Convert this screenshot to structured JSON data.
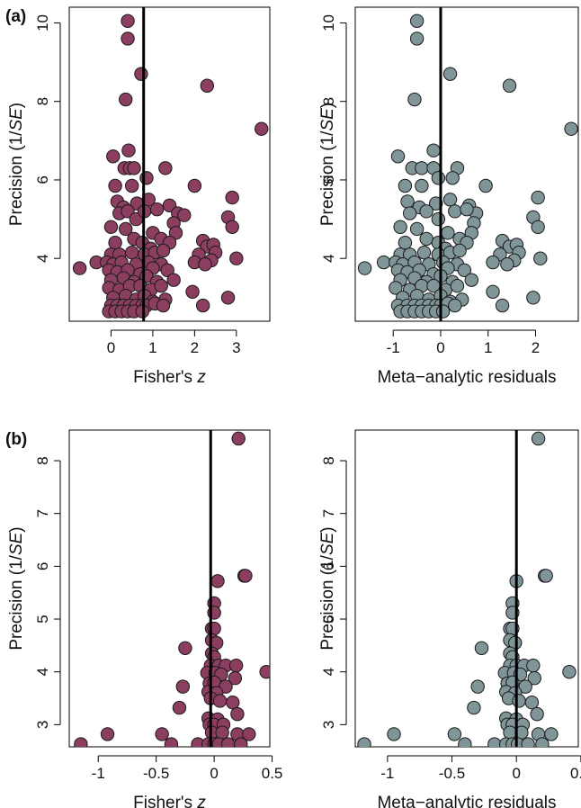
{
  "figure": {
    "row_labels": [
      "(a)",
      "(b)"
    ]
  },
  "colors": {
    "fisher_fill": "#8B3E60",
    "residual_fill": "#7F9598",
    "marker_stroke": "#1a1a1a",
    "reference_line": "#000000",
    "frame": "#000000"
  },
  "chart_data": [
    {
      "type": "scatter",
      "row_label": "(a)",
      "xlabel": "Fisher's z",
      "ylabel": "Precision (1/SE)",
      "xlim": [
        -1.0,
        3.8
      ],
      "ylim": [
        2.4,
        10.4
      ],
      "xticks": [
        0,
        1,
        2,
        3
      ],
      "yticks": [
        4,
        6,
        8,
        10
      ],
      "reference_x": 0.78,
      "color_key": "fisher_fill",
      "points": [
        [
          0.4,
          10.05
        ],
        [
          0.4,
          9.6
        ],
        [
          0.72,
          8.7
        ],
        [
          0.35,
          8.05
        ],
        [
          2.3,
          8.4
        ],
        [
          3.6,
          7.3
        ],
        [
          0.05,
          6.6
        ],
        [
          0.42,
          6.75
        ],
        [
          0.32,
          6.3
        ],
        [
          0.45,
          6.3
        ],
        [
          0.55,
          6.3
        ],
        [
          1.3,
          6.3
        ],
        [
          0.1,
          5.85
        ],
        [
          0.5,
          5.85
        ],
        [
          0.85,
          6.05
        ],
        [
          2.0,
          5.85
        ],
        [
          2.9,
          5.55
        ],
        [
          0.15,
          5.45
        ],
        [
          0.3,
          5.3
        ],
        [
          0.62,
          5.4
        ],
        [
          0.9,
          5.5
        ],
        [
          1.4,
          5.35
        ],
        [
          1.6,
          5.15
        ],
        [
          0.2,
          5.15
        ],
        [
          0.4,
          5.2
        ],
        [
          0.6,
          5.0
        ],
        [
          0.8,
          5.2
        ],
        [
          1.1,
          5.25
        ],
        [
          1.5,
          4.9
        ],
        [
          1.75,
          5.1
        ],
        [
          2.8,
          5.05
        ],
        [
          2.9,
          4.8
        ],
        [
          0.0,
          4.8
        ],
        [
          0.35,
          4.75
        ],
        [
          1.0,
          4.65
        ],
        [
          1.2,
          4.5
        ],
        [
          1.55,
          4.65
        ],
        [
          2.2,
          4.45
        ],
        [
          0.1,
          4.4
        ],
        [
          0.55,
          4.5
        ],
        [
          0.75,
          4.4
        ],
        [
          0.95,
          4.25
        ],
        [
          1.4,
          4.4
        ],
        [
          2.3,
          4.3
        ],
        [
          2.45,
          4.35
        ],
        [
          0.0,
          4.1
        ],
        [
          0.2,
          4.1
        ],
        [
          0.5,
          4.15
        ],
        [
          0.8,
          4.1
        ],
        [
          1.05,
          4.15
        ],
        [
          1.25,
          4.2
        ],
        [
          2.1,
          4.1
        ],
        [
          2.5,
          4.15
        ],
        [
          -0.35,
          3.9
        ],
        [
          -0.1,
          3.9
        ],
        [
          0.05,
          3.85
        ],
        [
          0.25,
          3.9
        ],
        [
          0.6,
          3.85
        ],
        [
          0.9,
          3.9
        ],
        [
          1.2,
          3.85
        ],
        [
          2.0,
          3.9
        ],
        [
          2.4,
          3.95
        ],
        [
          3.0,
          4.0
        ],
        [
          -0.75,
          3.75
        ],
        [
          -0.05,
          3.7
        ],
        [
          0.15,
          3.65
        ],
        [
          0.4,
          3.7
        ],
        [
          0.7,
          3.6
        ],
        [
          1.0,
          3.75
        ],
        [
          1.35,
          3.7
        ],
        [
          2.25,
          3.85
        ],
        [
          0.0,
          3.45
        ],
        [
          0.3,
          3.5
        ],
        [
          0.55,
          3.4
        ],
        [
          0.85,
          3.55
        ],
        [
          1.1,
          3.4
        ],
        [
          1.5,
          3.45
        ],
        [
          -0.05,
          3.25
        ],
        [
          0.2,
          3.2
        ],
        [
          0.45,
          3.3
        ],
        [
          0.7,
          3.3
        ],
        [
          0.95,
          3.2
        ],
        [
          1.2,
          3.3
        ],
        [
          1.95,
          3.15
        ],
        [
          2.8,
          3.0
        ],
        [
          0.05,
          3.0
        ],
        [
          0.35,
          3.05
        ],
        [
          0.6,
          2.95
        ],
        [
          0.8,
          3.05
        ],
        [
          1.0,
          2.9
        ],
        [
          1.3,
          2.95
        ],
        [
          0.0,
          2.8
        ],
        [
          0.15,
          2.8
        ],
        [
          0.3,
          2.8
        ],
        [
          0.45,
          2.8
        ],
        [
          0.6,
          2.8
        ],
        [
          0.75,
          2.8
        ],
        [
          0.85,
          2.8
        ],
        [
          1.05,
          2.85
        ],
        [
          1.25,
          2.8
        ],
        [
          2.2,
          2.8
        ],
        [
          -0.05,
          2.65
        ],
        [
          0.1,
          2.65
        ],
        [
          0.25,
          2.65
        ],
        [
          0.4,
          2.65
        ],
        [
          0.55,
          2.65
        ],
        [
          0.75,
          2.65
        ]
      ]
    },
    {
      "type": "scatter",
      "row_label": "",
      "xlabel": "Meta−analytic residuals",
      "ylabel": "Precision (1/SE)",
      "xlim": [
        -1.8,
        2.9
      ],
      "ylim": [
        2.4,
        10.4
      ],
      "xticks": [
        -1,
        0,
        1,
        2
      ],
      "yticks": [
        4,
        6,
        8,
        10
      ],
      "reference_x": 0.0,
      "color_key": "residual_fill",
      "points": [
        [
          -0.5,
          10.05
        ],
        [
          -0.5,
          9.6
        ],
        [
          0.2,
          8.7
        ],
        [
          -0.55,
          8.05
        ],
        [
          1.45,
          8.4
        ],
        [
          2.75,
          7.3
        ],
        [
          -0.9,
          6.6
        ],
        [
          -0.15,
          6.75
        ],
        [
          -0.6,
          6.3
        ],
        [
          -0.4,
          6.3
        ],
        [
          -0.15,
          6.3
        ],
        [
          0.35,
          6.3
        ],
        [
          -0.75,
          5.85
        ],
        [
          -0.4,
          5.85
        ],
        [
          -0.05,
          6.05
        ],
        [
          0.25,
          6.05
        ],
        [
          0.95,
          5.85
        ],
        [
          2.05,
          5.55
        ],
        [
          -0.7,
          5.45
        ],
        [
          -0.45,
          5.3
        ],
        [
          -0.1,
          5.4
        ],
        [
          0.2,
          5.5
        ],
        [
          0.6,
          5.35
        ],
        [
          0.75,
          5.15
        ],
        [
          -0.65,
          5.15
        ],
        [
          -0.3,
          5.2
        ],
        [
          -0.05,
          5.0
        ],
        [
          0.3,
          5.2
        ],
        [
          0.55,
          5.25
        ],
        [
          0.7,
          4.9
        ],
        [
          1.95,
          5.05
        ],
        [
          2.05,
          4.8
        ],
        [
          -0.85,
          4.8
        ],
        [
          -0.5,
          4.75
        ],
        [
          0.15,
          4.65
        ],
        [
          0.4,
          4.5
        ],
        [
          0.65,
          4.65
        ],
        [
          1.3,
          4.45
        ],
        [
          -0.75,
          4.4
        ],
        [
          -0.3,
          4.5
        ],
        [
          -0.05,
          4.4
        ],
        [
          0.1,
          4.25
        ],
        [
          0.55,
          4.4
        ],
        [
          1.45,
          4.3
        ],
        [
          1.6,
          4.35
        ],
        [
          -0.85,
          4.1
        ],
        [
          -0.65,
          4.1
        ],
        [
          -0.35,
          4.15
        ],
        [
          -0.05,
          4.1
        ],
        [
          0.2,
          4.15
        ],
        [
          0.4,
          4.2
        ],
        [
          1.25,
          4.1
        ],
        [
          1.65,
          4.15
        ],
        [
          -1.2,
          3.9
        ],
        [
          -0.95,
          3.9
        ],
        [
          -0.8,
          3.85
        ],
        [
          -0.55,
          3.9
        ],
        [
          -0.25,
          3.85
        ],
        [
          0.05,
          3.9
        ],
        [
          0.35,
          3.85
        ],
        [
          1.1,
          3.9
        ],
        [
          1.55,
          3.95
        ],
        [
          2.1,
          4.0
        ],
        [
          -1.6,
          3.75
        ],
        [
          -0.9,
          3.7
        ],
        [
          -0.7,
          3.65
        ],
        [
          -0.45,
          3.7
        ],
        [
          -0.15,
          3.6
        ],
        [
          0.15,
          3.75
        ],
        [
          0.5,
          3.7
        ],
        [
          1.4,
          3.85
        ],
        [
          -0.85,
          3.45
        ],
        [
          -0.55,
          3.5
        ],
        [
          -0.3,
          3.4
        ],
        [
          0.0,
          3.55
        ],
        [
          0.25,
          3.4
        ],
        [
          0.65,
          3.45
        ],
        [
          -0.95,
          3.25
        ],
        [
          -0.65,
          3.2
        ],
        [
          -0.4,
          3.3
        ],
        [
          -0.15,
          3.3
        ],
        [
          0.1,
          3.2
        ],
        [
          0.35,
          3.3
        ],
        [
          1.1,
          3.15
        ],
        [
          1.95,
          3.0
        ],
        [
          -0.8,
          3.0
        ],
        [
          -0.5,
          3.05
        ],
        [
          -0.25,
          2.95
        ],
        [
          0.0,
          3.05
        ],
        [
          0.2,
          2.9
        ],
        [
          0.45,
          2.95
        ],
        [
          -0.9,
          2.8
        ],
        [
          -0.7,
          2.8
        ],
        [
          -0.55,
          2.8
        ],
        [
          -0.4,
          2.8
        ],
        [
          -0.25,
          2.8
        ],
        [
          -0.1,
          2.8
        ],
        [
          0.0,
          2.8
        ],
        [
          0.15,
          2.85
        ],
        [
          0.3,
          2.8
        ],
        [
          1.3,
          2.8
        ],
        [
          -0.85,
          2.65
        ],
        [
          -0.7,
          2.65
        ],
        [
          -0.55,
          2.65
        ],
        [
          -0.4,
          2.65
        ],
        [
          -0.25,
          2.65
        ],
        [
          -0.1,
          2.65
        ],
        [
          0.05,
          2.65
        ]
      ]
    },
    {
      "type": "scatter",
      "row_label": "(b)",
      "xlabel": "Fisher's z",
      "ylabel": "Precision (1/SE)",
      "xlim": [
        -1.25,
        0.48
      ],
      "ylim": [
        2.58,
        8.58
      ],
      "xticks": [
        -1.0,
        -0.5,
        0.0,
        0.5
      ],
      "yticks": [
        3,
        4,
        5,
        6,
        7,
        8
      ],
      "reference_x": -0.03,
      "color_key": "fisher_fill",
      "points": [
        [
          0.21,
          8.42
        ],
        [
          0.26,
          5.82
        ],
        [
          0.27,
          5.82
        ],
        [
          0.03,
          5.72
        ],
        [
          0.0,
          5.3
        ],
        [
          0.0,
          5.12
        ],
        [
          -0.02,
          4.82
        ],
        [
          0.0,
          4.82
        ],
        [
          -0.02,
          4.6
        ],
        [
          0.02,
          4.55
        ],
        [
          -0.25,
          4.45
        ],
        [
          -0.02,
          4.35
        ],
        [
          0.0,
          4.28
        ],
        [
          -0.03,
          4.12
        ],
        [
          0.04,
          4.12
        ],
        [
          0.1,
          4.12
        ],
        [
          0.19,
          4.12
        ],
        [
          0.45,
          4.0
        ],
        [
          -0.06,
          3.98
        ],
        [
          0.01,
          3.98
        ],
        [
          0.06,
          3.95
        ],
        [
          0.18,
          3.88
        ],
        [
          -0.04,
          3.78
        ],
        [
          0.0,
          3.8
        ],
        [
          -0.27,
          3.72
        ],
        [
          0.1,
          3.72
        ],
        [
          -0.05,
          3.62
        ],
        [
          0.02,
          3.6
        ],
        [
          -0.03,
          3.5
        ],
        [
          0.05,
          3.45
        ],
        [
          0.16,
          3.42
        ],
        [
          -0.3,
          3.32
        ],
        [
          0.2,
          3.2
        ],
        [
          -0.05,
          3.12
        ],
        [
          0.03,
          3.1
        ],
        [
          -0.04,
          3.0
        ],
        [
          0.0,
          3.0
        ],
        [
          0.08,
          3.0
        ],
        [
          -0.02,
          2.85
        ],
        [
          0.07,
          2.85
        ],
        [
          -0.45,
          2.82
        ],
        [
          -0.92,
          2.82
        ],
        [
          0.2,
          2.82
        ],
        [
          0.3,
          2.82
        ],
        [
          -1.15,
          2.63
        ],
        [
          -0.37,
          2.63
        ],
        [
          -0.14,
          2.63
        ],
        [
          -0.05,
          2.63
        ],
        [
          0.0,
          2.63
        ],
        [
          0.04,
          2.63
        ],
        [
          0.12,
          2.63
        ],
        [
          0.23,
          2.63
        ]
      ]
    },
    {
      "type": "scatter",
      "row_label": "",
      "xlabel": "Meta−analytic residuals",
      "ylabel": "Precision (1/SE)",
      "xlim": [
        -1.25,
        0.48
      ],
      "ylim": [
        2.58,
        8.58
      ],
      "xticks": [
        -1.0,
        -0.5,
        0.0,
        0.5
      ],
      "yticks": [
        3,
        4,
        5,
        6,
        7,
        8
      ],
      "reference_x": 0.0,
      "color_key": "residual_fill",
      "points": [
        [
          0.17,
          8.42
        ],
        [
          0.22,
          5.82
        ],
        [
          0.23,
          5.82
        ],
        [
          0.0,
          5.72
        ],
        [
          -0.03,
          5.3
        ],
        [
          -0.03,
          5.12
        ],
        [
          -0.05,
          4.82
        ],
        [
          -0.03,
          4.82
        ],
        [
          -0.05,
          4.6
        ],
        [
          -0.01,
          4.55
        ],
        [
          -0.27,
          4.45
        ],
        [
          -0.05,
          4.35
        ],
        [
          -0.03,
          4.28
        ],
        [
          -0.05,
          4.12
        ],
        [
          0.0,
          4.12
        ],
        [
          0.06,
          4.12
        ],
        [
          0.13,
          4.12
        ],
        [
          0.41,
          4.0
        ],
        [
          -0.09,
          3.98
        ],
        [
          -0.02,
          3.98
        ],
        [
          0.03,
          3.95
        ],
        [
          0.14,
          3.88
        ],
        [
          -0.07,
          3.78
        ],
        [
          -0.03,
          3.8
        ],
        [
          -0.3,
          3.72
        ],
        [
          0.07,
          3.72
        ],
        [
          -0.08,
          3.62
        ],
        [
          -0.01,
          3.6
        ],
        [
          -0.06,
          3.5
        ],
        [
          0.02,
          3.45
        ],
        [
          0.12,
          3.42
        ],
        [
          -0.33,
          3.32
        ],
        [
          0.16,
          3.2
        ],
        [
          -0.08,
          3.12
        ],
        [
          0.0,
          3.1
        ],
        [
          -0.07,
          3.0
        ],
        [
          -0.03,
          3.0
        ],
        [
          0.05,
          3.0
        ],
        [
          -0.05,
          2.85
        ],
        [
          0.04,
          2.85
        ],
        [
          -0.48,
          2.82
        ],
        [
          -0.95,
          2.82
        ],
        [
          0.17,
          2.82
        ],
        [
          0.27,
          2.82
        ],
        [
          -1.18,
          2.63
        ],
        [
          -0.4,
          2.63
        ],
        [
          -0.17,
          2.63
        ],
        [
          -0.08,
          2.63
        ],
        [
          -0.03,
          2.63
        ],
        [
          0.01,
          2.63
        ],
        [
          0.09,
          2.63
        ],
        [
          0.2,
          2.63
        ]
      ]
    }
  ]
}
